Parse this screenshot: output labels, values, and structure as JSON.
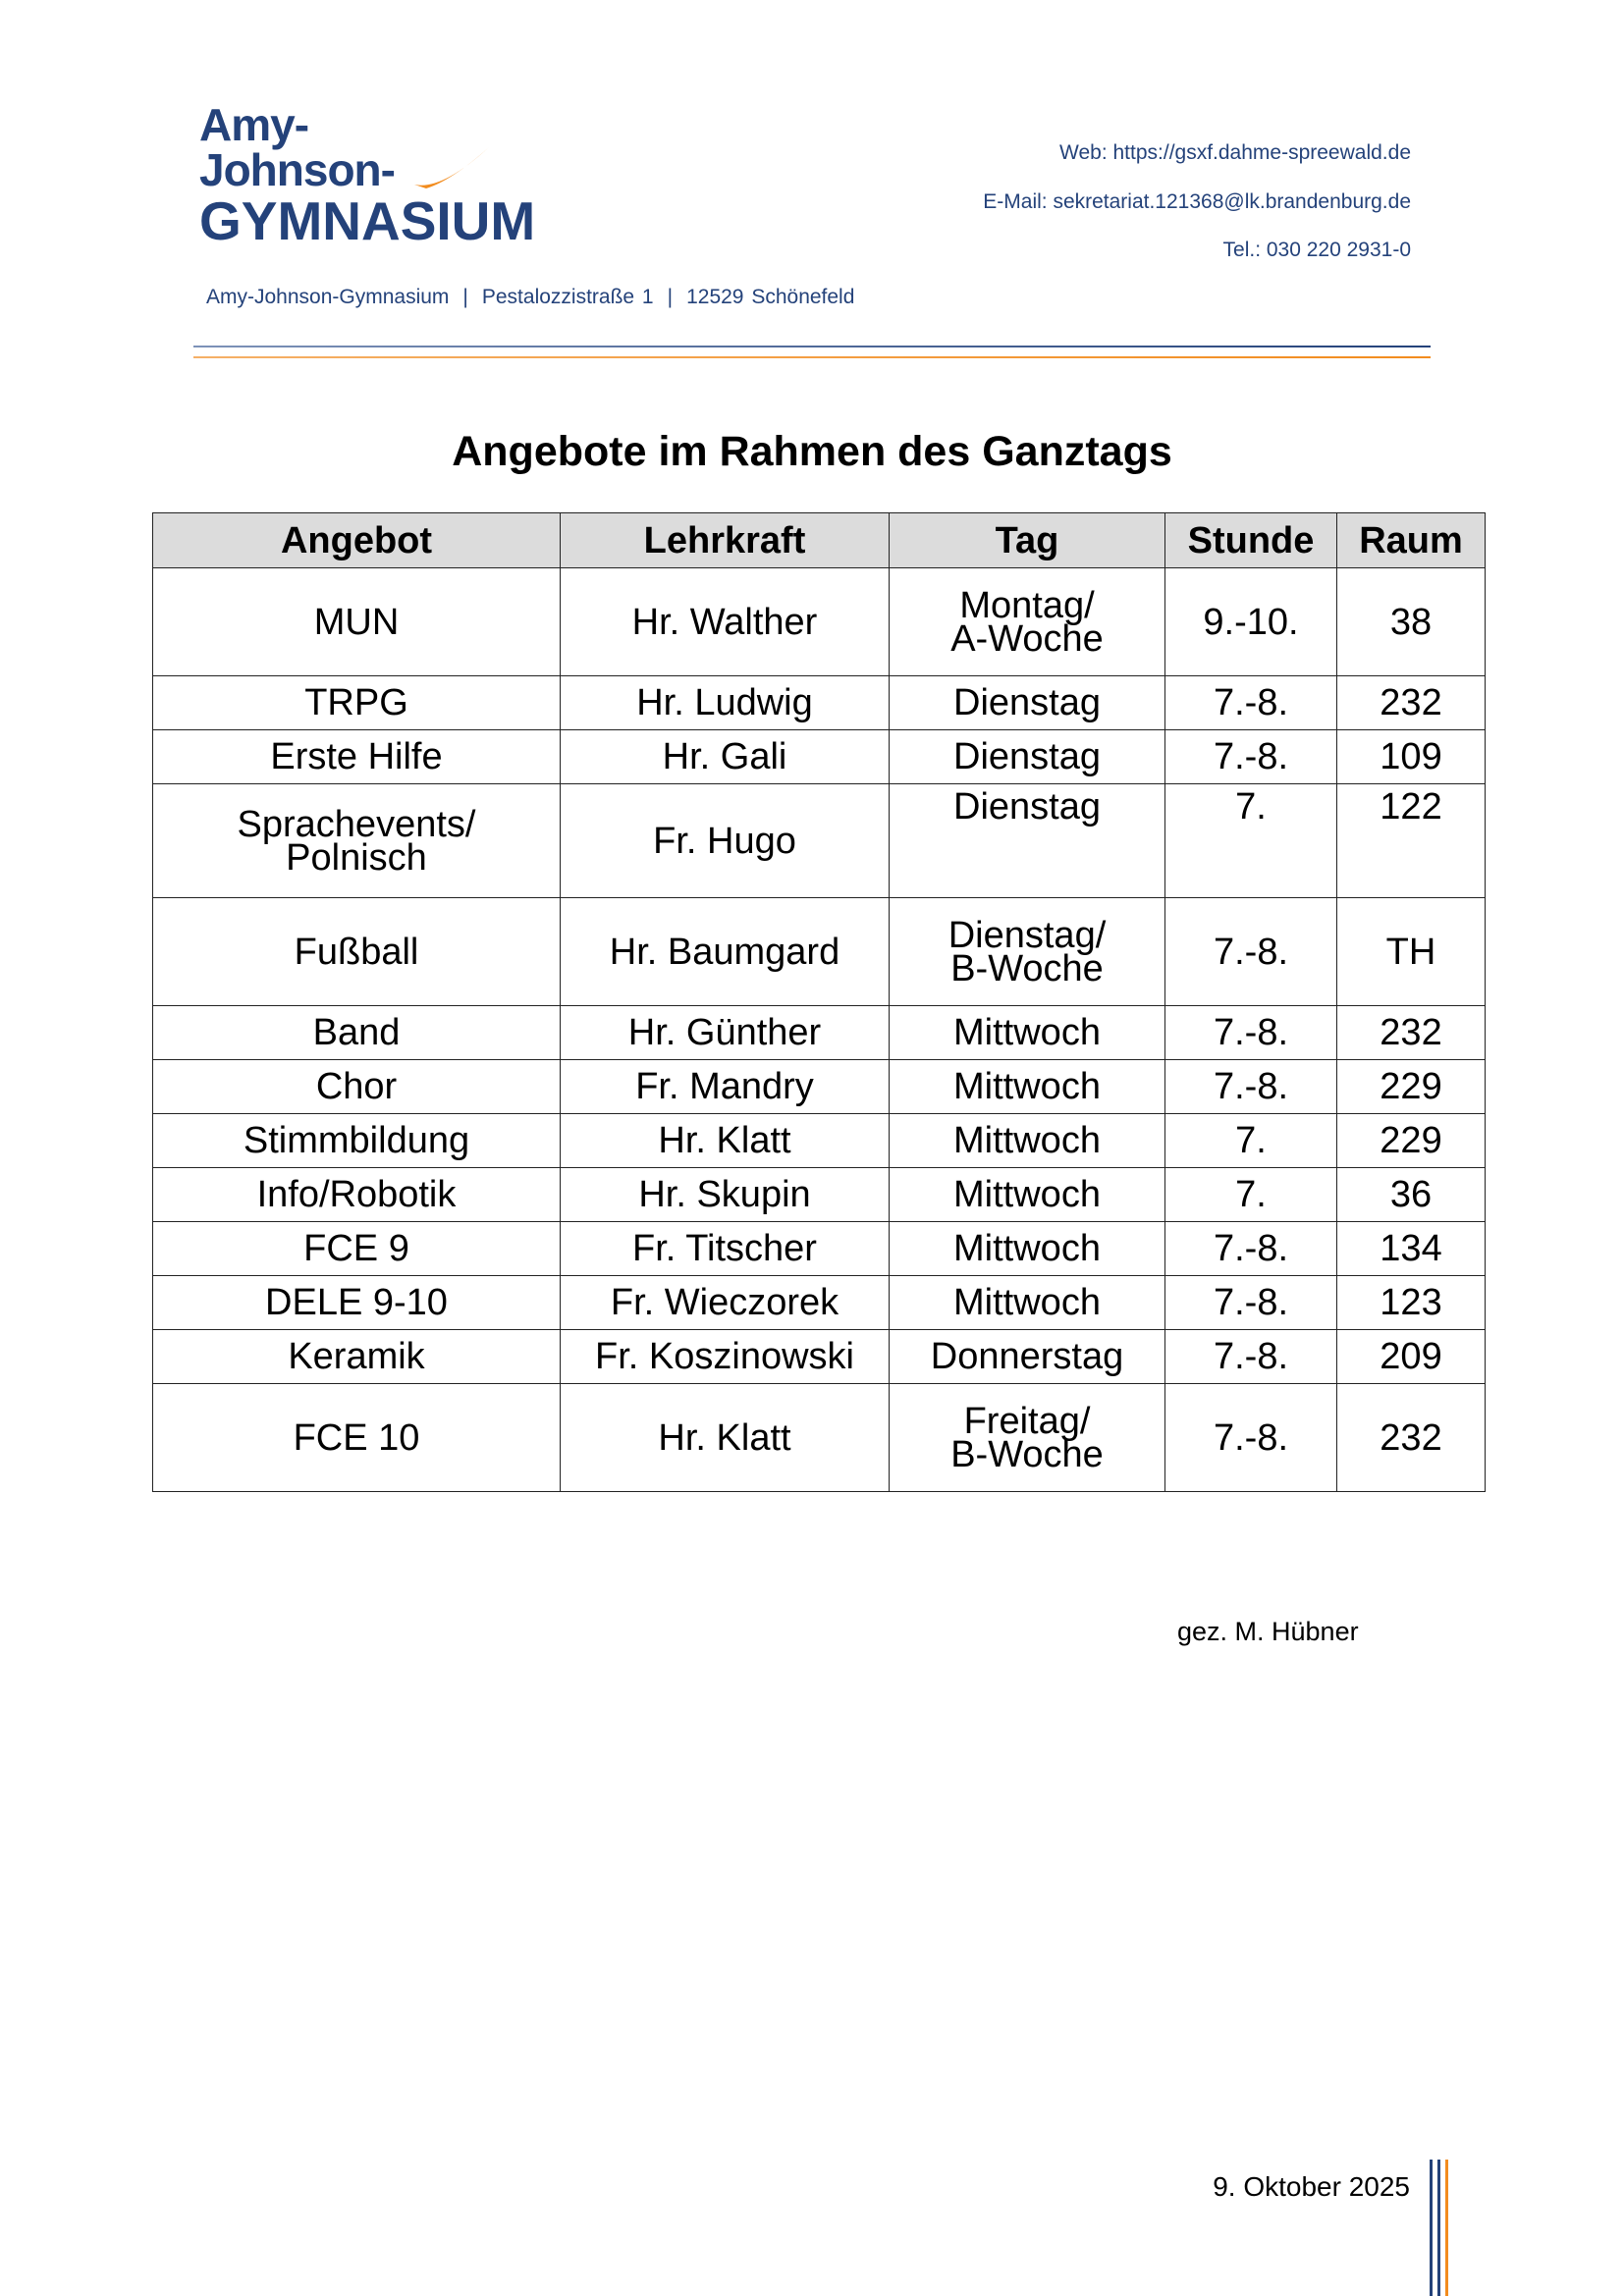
{
  "header": {
    "logo": {
      "line1": "Amy-",
      "line2": "Johnson-",
      "line3": "GYMNASIUM"
    },
    "web": "Web: https://gsxf.dahme-spreewald.de",
    "email": "E-Mail: sekretariat.121368@lk.brandenburg.de",
    "tel": "Tel.: 030 220 2931-0",
    "address": [
      "Amy-Johnson-Gymnasium",
      "Pestalozzistraße 1",
      "12529 Schönefeld"
    ],
    "address_separator": "|"
  },
  "colors": {
    "brand_blue": "#24427a",
    "brand_orange": "#f28c1e",
    "header_fill": "#dcdcdc"
  },
  "title": "Angebote im Rahmen des Ganztags",
  "table": {
    "columns": [
      "Angebot",
      "Lehrkraft",
      "Tag",
      "Stunde",
      "Raum"
    ],
    "rows": [
      {
        "angebot": [
          "MUN"
        ],
        "lehrkraft": "Hr. Walther",
        "tag": [
          "Montag/",
          "A-Woche"
        ],
        "stunde": "9.-10.",
        "raum": "38"
      },
      {
        "angebot": [
          "TRPG"
        ],
        "lehrkraft": "Hr. Ludwig",
        "tag": [
          "Dienstag"
        ],
        "stunde": "7.-8.",
        "raum": "232"
      },
      {
        "angebot": [
          "Erste Hilfe"
        ],
        "lehrkraft": "Hr. Gali",
        "tag": [
          "Dienstag"
        ],
        "stunde": "7.-8.",
        "raum": "109"
      },
      {
        "angebot": [
          "Sprachevents/",
          "Polnisch"
        ],
        "lehrkraft": "Fr. Hugo",
        "tag": [
          "Dienstag"
        ],
        "stunde": "7.",
        "raum": "122"
      },
      {
        "angebot": [
          "Fußball"
        ],
        "lehrkraft": "Hr. Baumgard",
        "tag": [
          "Dienstag/",
          "B-Woche"
        ],
        "stunde": "7.-8.",
        "raum": "TH"
      },
      {
        "angebot": [
          "Band"
        ],
        "lehrkraft": "Hr. Günther",
        "tag": [
          "Mittwoch"
        ],
        "stunde": "7.-8.",
        "raum": "232"
      },
      {
        "angebot": [
          "Chor"
        ],
        "lehrkraft": "Fr. Mandry",
        "tag": [
          "Mittwoch"
        ],
        "stunde": "7.-8.",
        "raum": "229"
      },
      {
        "angebot": [
          "Stimmbildung"
        ],
        "lehrkraft": "Hr. Klatt",
        "tag": [
          "Mittwoch"
        ],
        "stunde": "7.",
        "raum": "229"
      },
      {
        "angebot": [
          "Info/Robotik"
        ],
        "lehrkraft": "Hr. Skupin",
        "tag": [
          "Mittwoch"
        ],
        "stunde": "7.",
        "raum": "36"
      },
      {
        "angebot": [
          "FCE 9"
        ],
        "lehrkraft": "Fr. Titscher",
        "tag": [
          "Mittwoch"
        ],
        "stunde": "7.-8.",
        "raum": "134"
      },
      {
        "angebot": [
          "DELE 9-10"
        ],
        "lehrkraft": "Fr. Wieczorek",
        "tag": [
          "Mittwoch"
        ],
        "stunde": "7.-8.",
        "raum": "123"
      },
      {
        "angebot": [
          "Keramik"
        ],
        "lehrkraft": "Fr. Koszinowski",
        "tag": [
          "Donnerstag"
        ],
        "stunde": "7.-8.",
        "raum": "209"
      },
      {
        "angebot": [
          "FCE 10"
        ],
        "lehrkraft": "Hr. Klatt",
        "tag": [
          "Freitag/",
          "B-Woche"
        ],
        "stunde": "7.-8.",
        "raum": "232"
      }
    ]
  },
  "signature": "gez. M. Hübner",
  "date": "9. Oktober 2025"
}
